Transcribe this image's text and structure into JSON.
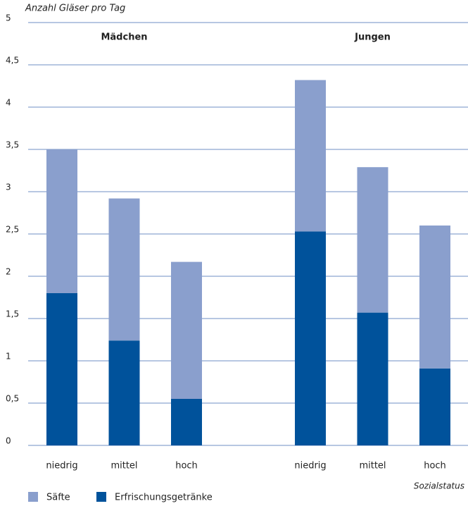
{
  "chart_data": {
    "type": "stacked-bar",
    "title": "Anzahl Gläser pro Tag",
    "x_label": "Sozialstatus",
    "groups": [
      "Mädchen",
      "Jungen"
    ],
    "categories": [
      "niedrig",
      "mittel",
      "hoch",
      "niedrig",
      "mittel",
      "hoch"
    ],
    "series": [
      {
        "name": "Säfte",
        "color": "#8a9fcd",
        "values": [
          1.7,
          1.68,
          1.62,
          1.79,
          1.72,
          1.69
        ]
      },
      {
        "name": "Erfrischungsgetränke",
        "color": "#00529b",
        "values": [
          1.8,
          1.24,
          0.55,
          2.53,
          1.57,
          0.91
        ]
      }
    ],
    "ylim": [
      0,
      5
    ],
    "yticks": [
      0,
      {
        "value": 0.5,
        "label": "0,5"
      },
      1,
      {
        "value": 1.5,
        "label": "1,5"
      },
      2,
      {
        "value": 2.5,
        "label": "2,5"
      },
      3,
      {
        "value": 3.5,
        "label": "3,5"
      },
      4,
      {
        "value": 4.5,
        "label": "4,5"
      },
      5
    ],
    "grid": true
  }
}
